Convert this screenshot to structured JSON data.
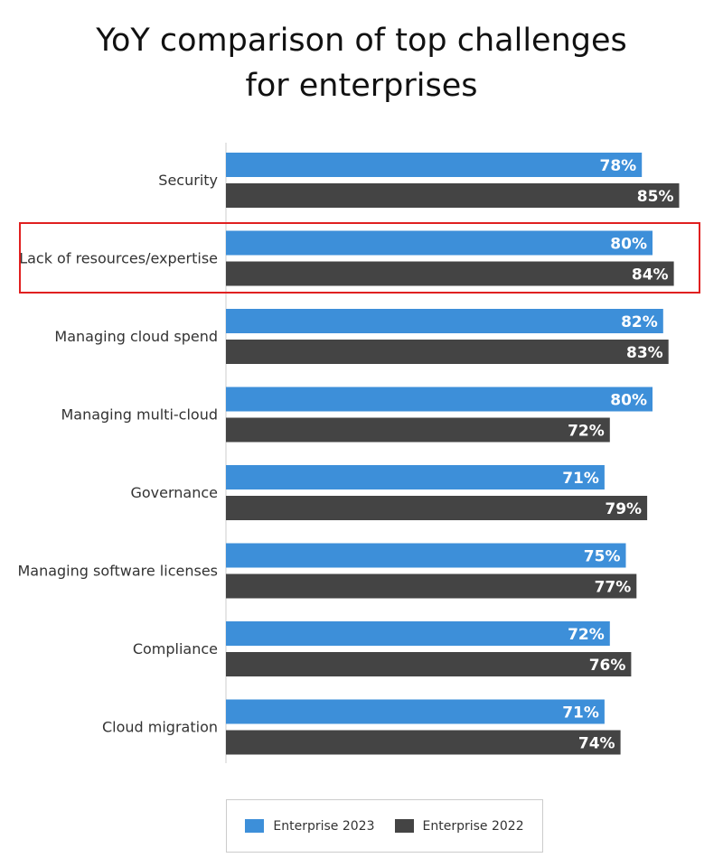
{
  "chart_data": {
    "type": "bar",
    "orientation": "horizontal",
    "title": "YoY comparison of top challenges for enterprises",
    "categories": [
      "Security",
      "Lack of resources/expertise",
      "Managing cloud spend",
      "Managing multi-cloud",
      "Governance",
      "Managing software licenses",
      "Compliance",
      "Cloud migration"
    ],
    "series": [
      {
        "name": "Enterprise 2023",
        "color": "#3d8fd9",
        "values": [
          78,
          80,
          82,
          80,
          71,
          75,
          72,
          71
        ]
      },
      {
        "name": "Enterprise 2022",
        "color": "#444444",
        "values": [
          85,
          84,
          83,
          72,
          79,
          77,
          76,
          74
        ]
      }
    ],
    "value_suffix": "%",
    "xlim": [
      0,
      100
    ],
    "grid": false,
    "legend": "bottom",
    "highlighted_category": "Lack of resources/expertise",
    "highlight_color": "#e02020"
  }
}
